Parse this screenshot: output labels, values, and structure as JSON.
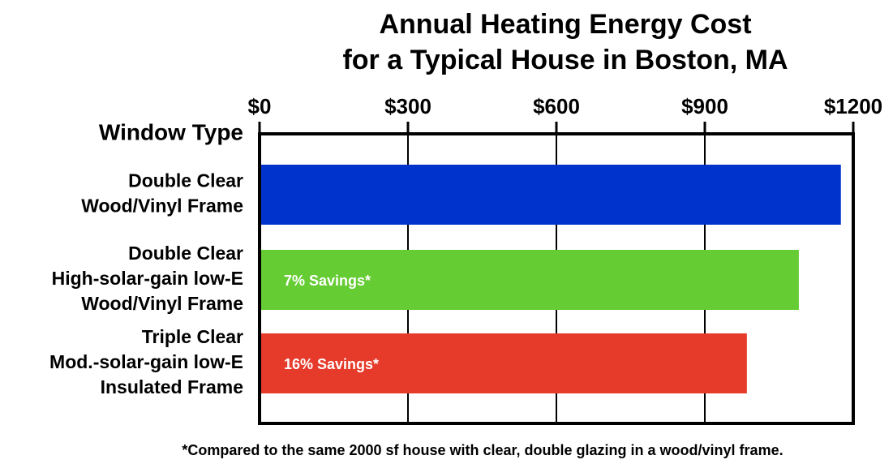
{
  "chart_data": {
    "type": "barh",
    "title": "Annual Heating Energy Cost\nfor a Typical House in Boston, MA",
    "y_label": "Window Type",
    "categories": [
      "Double Clear\nWood/Vinyl Frame",
      "Double Clear\nHigh-solar-gain low-E\nWood/Vinyl Frame",
      "Triple Clear\nMod.-solar-gain low-E\nInsulated Frame"
    ],
    "values": [
      1175,
      1090,
      985
    ],
    "colors": [
      "#0033cc",
      "#66cc33",
      "#e63a2b"
    ],
    "annotations": [
      null,
      "7% Savings*",
      "16% Savings*"
    ],
    "xlim": [
      0,
      1200
    ],
    "xticks": [
      {
        "value": 0,
        "label": "$0"
      },
      {
        "value": 300,
        "label": "$300"
      },
      {
        "value": 600,
        "label": "$600"
      },
      {
        "value": 900,
        "label": "$900"
      },
      {
        "value": 1200,
        "label": "$1200"
      }
    ],
    "grid": true,
    "footnote": "*Compared to the same 2000 sf house with clear, double glazing in a wood/vinyl frame."
  }
}
